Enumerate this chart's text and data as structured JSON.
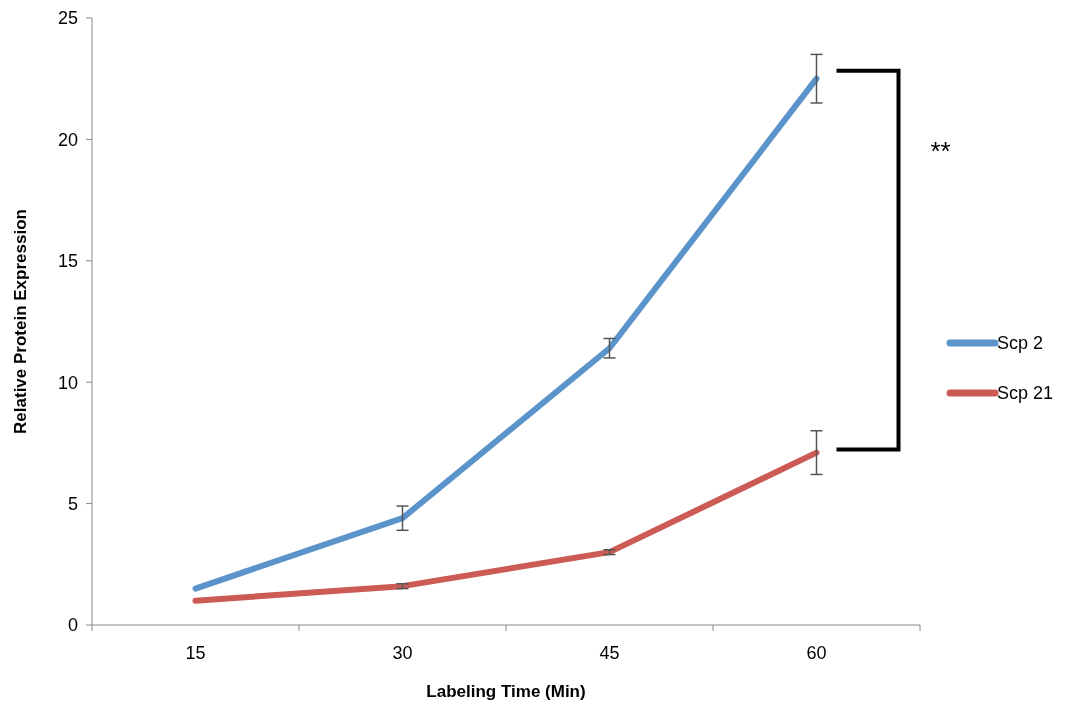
{
  "chart_data": {
    "type": "line",
    "xlabel": "Labeling Time (Min)",
    "ylabel": "Relative Protein Expression",
    "categories": [
      "15",
      "30",
      "45",
      "60"
    ],
    "ylim": [
      0,
      25
    ],
    "yticks": [
      0,
      5,
      10,
      15,
      20,
      25
    ],
    "grid": false,
    "legend": "right",
    "marker": "none",
    "line_style": "solid",
    "series": [
      {
        "name": "Scp 2",
        "color": "#5b93cb",
        "values": [
          1.5,
          4.4,
          11.4,
          22.5
        ],
        "errors": [
          null,
          0.5,
          0.4,
          1.0
        ]
      },
      {
        "name": "Scp 21",
        "color": "#cc5b55",
        "values": [
          1.0,
          1.6,
          3.0,
          7.1
        ],
        "errors": [
          null,
          0.1,
          0.1,
          0.9
        ]
      }
    ],
    "annotations": [
      "**"
    ]
  }
}
